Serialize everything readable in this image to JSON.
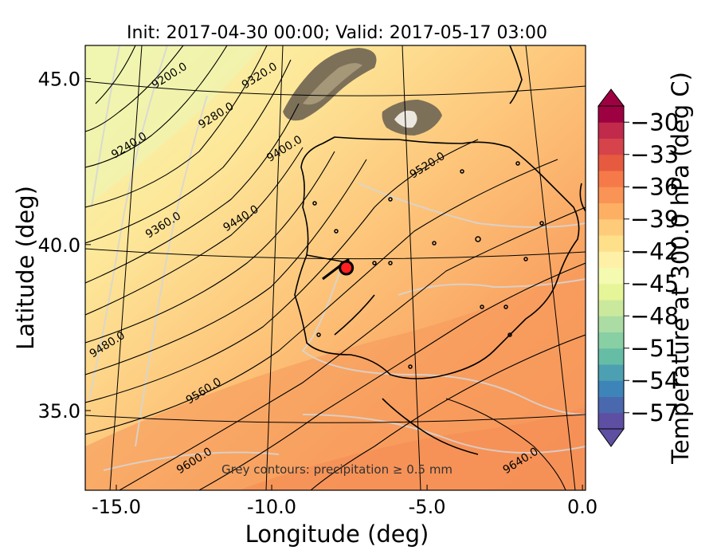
{
  "title": "Init: 2017-04-30 00:00; Valid: 2017-05-17 03:00",
  "x_axis": {
    "label": "Longitude (deg)",
    "ticks": [
      {
        "value": -15,
        "label": "-15.0"
      },
      {
        "value": -10,
        "label": "-10.0"
      },
      {
        "value": -5,
        "label": "-5.0"
      },
      {
        "value": 0,
        "label": "0.0"
      }
    ],
    "range": [
      -16,
      0.1
    ]
  },
  "y_axis": {
    "label": "Latitude (deg)",
    "ticks": [
      {
        "value": 35,
        "label": "35.0"
      },
      {
        "value": 40,
        "label": "40.0"
      },
      {
        "value": 45,
        "label": "45.0"
      }
    ],
    "range": [
      32.6,
      46.0
    ]
  },
  "colorbar": {
    "label": "Temperature at 300.0 hPa (deg C)",
    "ticks": [
      {
        "value": -30,
        "label": "−30"
      },
      {
        "value": -33,
        "label": "−33"
      },
      {
        "value": -36,
        "label": "−36"
      },
      {
        "value": -39,
        "label": "−39"
      },
      {
        "value": -42,
        "label": "−42"
      },
      {
        "value": -45,
        "label": "−45"
      },
      {
        "value": -48,
        "label": "−48"
      },
      {
        "value": -51,
        "label": "−51"
      },
      {
        "value": -54,
        "label": "−54"
      },
      {
        "value": -57,
        "label": "−57"
      }
    ],
    "range": [
      -58.5,
      -28.5
    ],
    "colormap": "Spectral_r"
  },
  "note": "Grey contours: precipitation ≥ 0.5 mm",
  "geopotential_contours": [
    {
      "label": "9200.0",
      "lon": -13.3,
      "lat": 45.1
    },
    {
      "label": "9240.0",
      "lon": -14.6,
      "lat": 43.0
    },
    {
      "label": "9280.0",
      "lon": -11.8,
      "lat": 43.9
    },
    {
      "label": "9320.0",
      "lon": -10.4,
      "lat": 45.1
    },
    {
      "label": "9360.0",
      "lon": -13.5,
      "lat": 40.6
    },
    {
      "label": "9400.0",
      "lon": -9.6,
      "lat": 42.9
    },
    {
      "label": "9440.0",
      "lon": -11.0,
      "lat": 40.8
    },
    {
      "label": "9480.0",
      "lon": -15.3,
      "lat": 37.0
    },
    {
      "label": "9520.0",
      "lon": -5.0,
      "lat": 42.4
    },
    {
      "label": "9560.0",
      "lon": -12.2,
      "lat": 35.6
    },
    {
      "label": "9600.0",
      "lon": -12.5,
      "lat": 33.5
    },
    {
      "label": "9640.0",
      "lon": -2.0,
      "lat": 33.5
    }
  ],
  "marker": {
    "lon": -7.6,
    "lat": 39.3,
    "color": "#ff2020"
  }
}
